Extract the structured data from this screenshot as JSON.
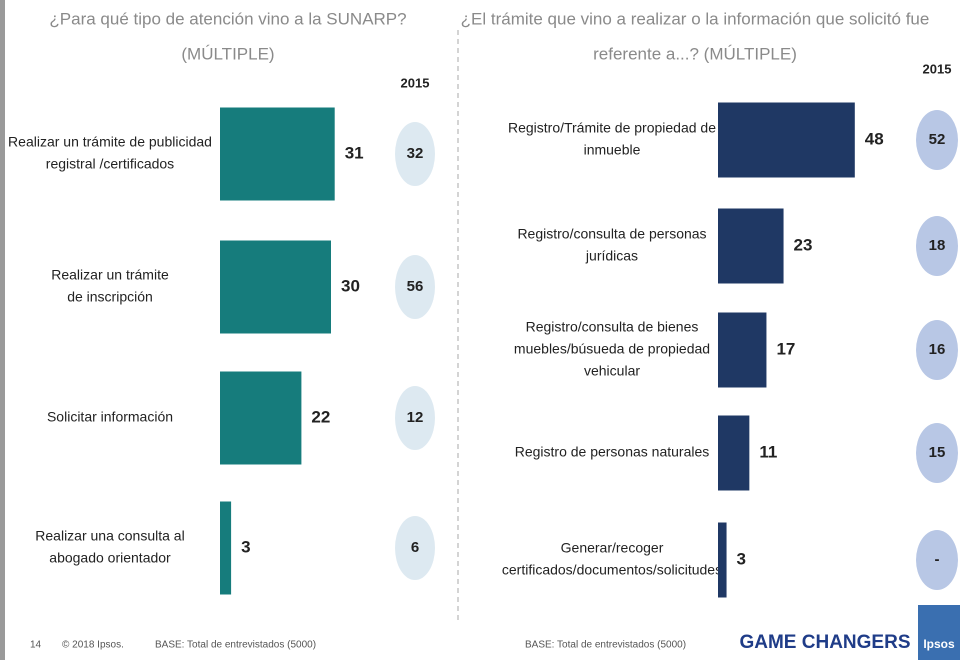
{
  "chart_data": [
    {
      "type": "bar",
      "title": [
        "¿Para qué tipo de atención vino a la SUNARP?",
        "(MÚLTIPLE)"
      ],
      "categories": [
        [
          "Realizar un trámite de publicidad",
          "registral /certificados"
        ],
        [
          "Realizar un trámite",
          "de inscripción"
        ],
        [
          "Solicitar información"
        ],
        [
          "Realizar una consulta al",
          "abogado orientador"
        ]
      ],
      "values": [
        31,
        30,
        22,
        3
      ],
      "color": "#167c7c",
      "comparison": {
        "name": "2015",
        "color": "#dde9f1",
        "values": [
          32,
          56,
          12,
          6
        ],
        "value_labels": [
          "32",
          "56",
          "12",
          "6"
        ]
      }
    },
    {
      "type": "bar",
      "title": [
        "¿El trámite que vino a realizar o la información que solicitó fue",
        "referente a...? (MÚLTIPLE)"
      ],
      "categories": [
        [
          "Registro/Trámite de propiedad de",
          "inmueble"
        ],
        [
          "Registro/consulta de personas",
          "jurídicas"
        ],
        [
          "Registro/consulta de bienes",
          "muebles/búsueda de propiedad",
          "vehicular"
        ],
        [
          "Registro de personas naturales"
        ],
        [
          "Generar/recoger",
          "certificados/documentos/solicitudes"
        ]
      ],
      "values": [
        48,
        23,
        17,
        11,
        3
      ],
      "color": "#1f3864",
      "comparison": {
        "name": "2015",
        "color": "#b8c7e5",
        "values": [
          52,
          18,
          16,
          15,
          null
        ],
        "value_labels": [
          "52",
          "18",
          "16",
          "15",
          "-"
        ]
      }
    }
  ],
  "footer": {
    "page": "14",
    "copyright": "© 2018 Ipsos.",
    "base_left": "BASE: Total de entrevistados (5000)",
    "base_right": "BASE: Total de entrevistados (5000)",
    "brand": "GAME CHANGERS",
    "logo": "Ipsos"
  }
}
